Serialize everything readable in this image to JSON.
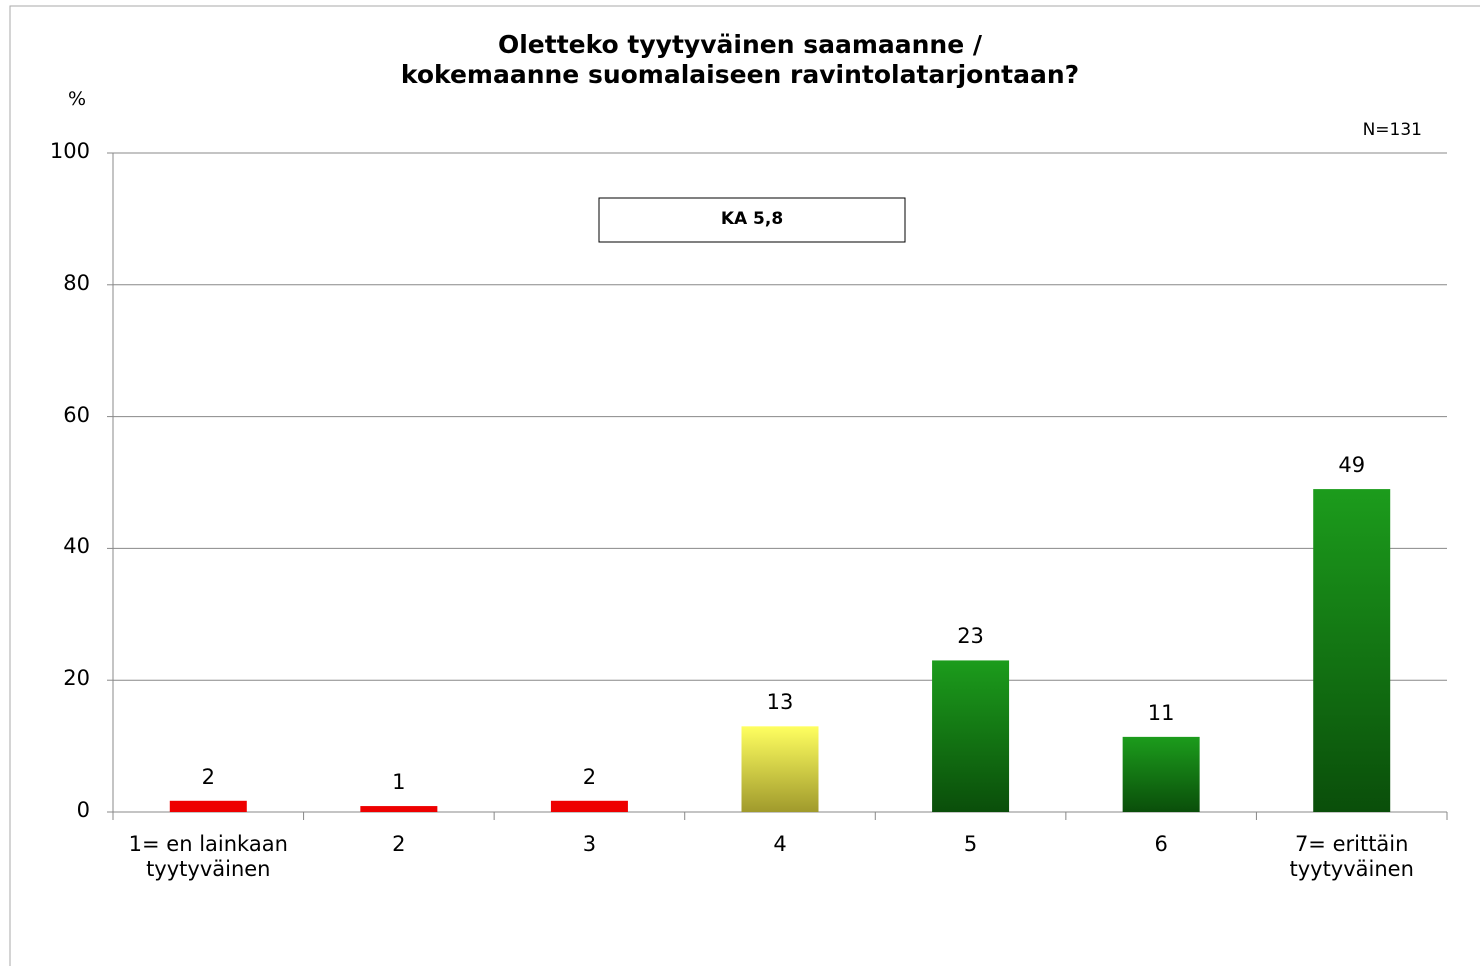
{
  "chart_data": {
    "type": "bar",
    "title": [
      "Oletteko tyytyväinen saamaanne /",
      "kokemaanne suomalaiseen ravintolatarjontaan?"
    ],
    "y_axis_label": "%",
    "annotations": [
      "N=131",
      "KA 5,8"
    ],
    "categories": [
      "1= en lainkaan tyytyväinen",
      "2",
      "3",
      "4",
      "5",
      "6",
      "7= erittäin tyytyväinen"
    ],
    "values": [
      1.7,
      0.9,
      1.7,
      13,
      23,
      11.4,
      49
    ],
    "value_labels": [
      "2",
      "1",
      "2",
      "13",
      "23",
      "11",
      "49"
    ],
    "colors": [
      "#ee0000",
      "#ee0000",
      "#ee0000",
      "#ffff60",
      "#1c9c1c",
      "#1c9c1c",
      "#1c9c1c"
    ],
    "colors_bottom": [
      "#ee0000",
      "#ee0000",
      "#ee0000",
      "#a09a2c",
      "#0a4e0a",
      "#0a4e0a",
      "#0a4e0a"
    ],
    "ylim": [
      0,
      100
    ],
    "yticks": [
      0,
      20,
      40,
      60,
      80,
      100
    ],
    "grid": true
  }
}
